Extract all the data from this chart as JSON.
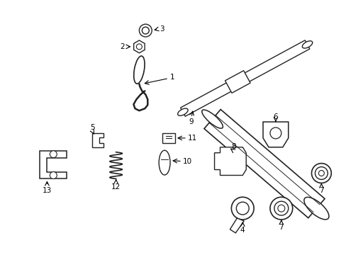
{
  "background_color": "#ffffff",
  "line_color": "#222222",
  "figsize": [
    4.89,
    3.6
  ],
  "dpi": 100
}
